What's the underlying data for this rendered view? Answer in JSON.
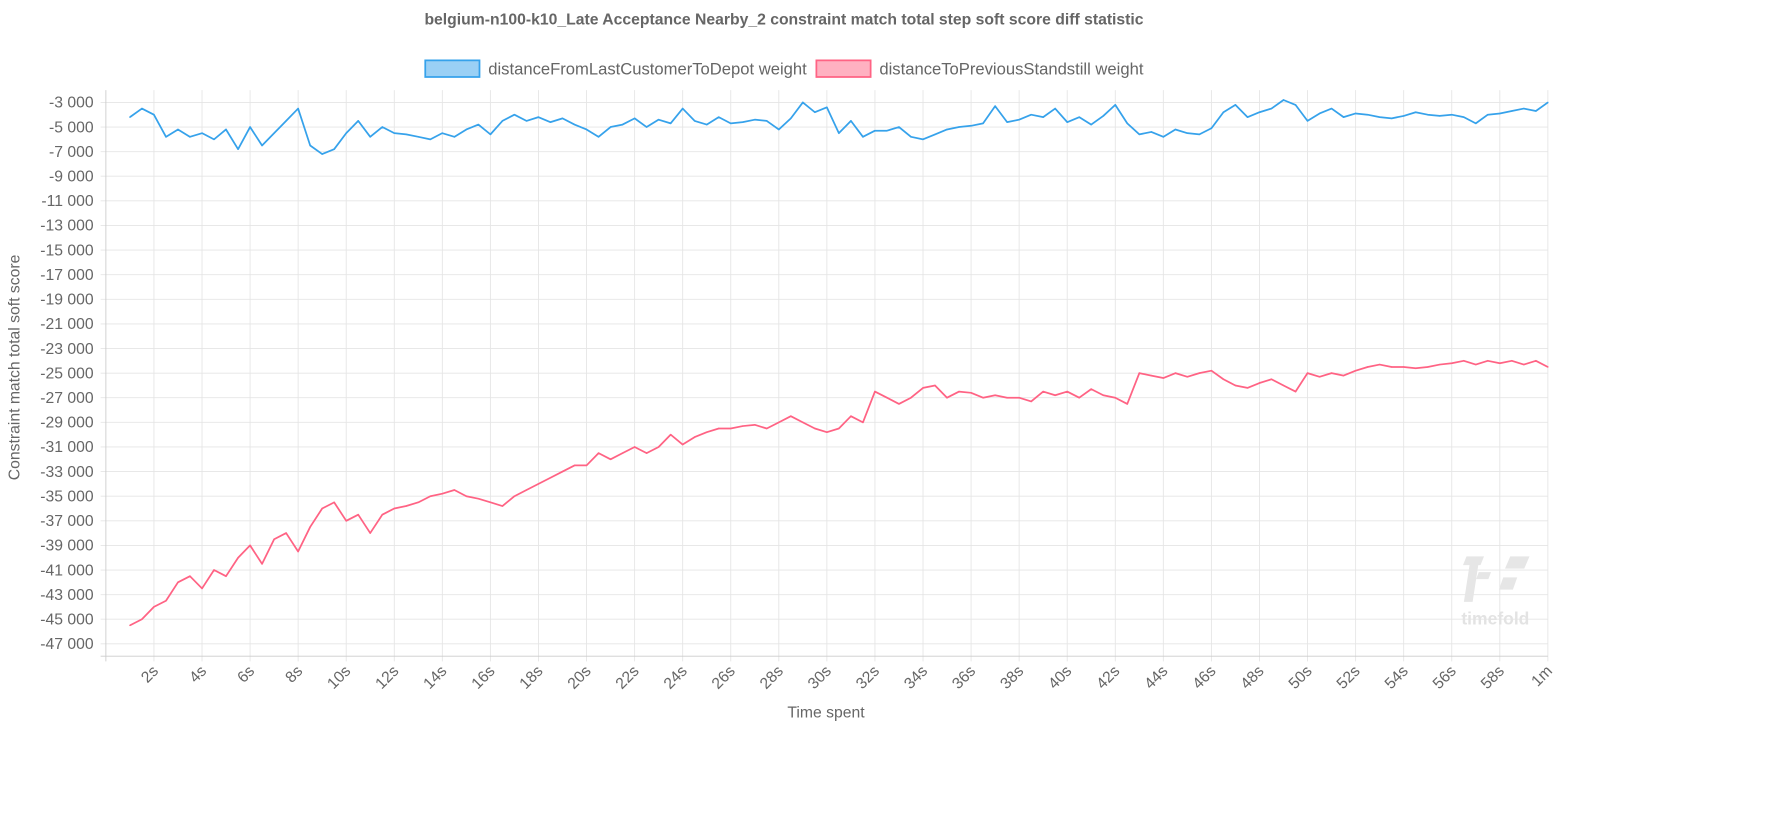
{
  "chart_data": {
    "type": "line",
    "title": "belgium-n100-k10_Late Acceptance Nearby_2 constraint match total step soft score diff statistic",
    "xlabel": "Time spent",
    "ylabel": "Constraint match total soft score",
    "xlim": [
      0,
      60
    ],
    "ylim": [
      -48000,
      -2000
    ],
    "grid": true,
    "legend_position": "top",
    "x_ticks": [
      {
        "value": 2,
        "label": "2s"
      },
      {
        "value": 4,
        "label": "4s"
      },
      {
        "value": 6,
        "label": "6s"
      },
      {
        "value": 8,
        "label": "8s"
      },
      {
        "value": 10,
        "label": "10s"
      },
      {
        "value": 12,
        "label": "12s"
      },
      {
        "value": 14,
        "label": "14s"
      },
      {
        "value": 16,
        "label": "16s"
      },
      {
        "value": 18,
        "label": "18s"
      },
      {
        "value": 20,
        "label": "20s"
      },
      {
        "value": 22,
        "label": "22s"
      },
      {
        "value": 24,
        "label": "24s"
      },
      {
        "value": 26,
        "label": "26s"
      },
      {
        "value": 28,
        "label": "28s"
      },
      {
        "value": 30,
        "label": "30s"
      },
      {
        "value": 32,
        "label": "32s"
      },
      {
        "value": 34,
        "label": "34s"
      },
      {
        "value": 36,
        "label": "36s"
      },
      {
        "value": 38,
        "label": "38s"
      },
      {
        "value": 40,
        "label": "40s"
      },
      {
        "value": 42,
        "label": "42s"
      },
      {
        "value": 44,
        "label": "44s"
      },
      {
        "value": 46,
        "label": "46s"
      },
      {
        "value": 48,
        "label": "48s"
      },
      {
        "value": 50,
        "label": "50s"
      },
      {
        "value": 52,
        "label": "52s"
      },
      {
        "value": 54,
        "label": "54s"
      },
      {
        "value": 56,
        "label": "56s"
      },
      {
        "value": 58,
        "label": "58s"
      },
      {
        "value": 60,
        "label": "1m"
      }
    ],
    "y_ticks": [
      {
        "value": -3000,
        "label": "-3 000"
      },
      {
        "value": -5000,
        "label": "-5 000"
      },
      {
        "value": -7000,
        "label": "-7 000"
      },
      {
        "value": -9000,
        "label": "-9 000"
      },
      {
        "value": -11000,
        "label": "-11 000"
      },
      {
        "value": -13000,
        "label": "-13 000"
      },
      {
        "value": -15000,
        "label": "-15 000"
      },
      {
        "value": -17000,
        "label": "-17 000"
      },
      {
        "value": -19000,
        "label": "-19 000"
      },
      {
        "value": -21000,
        "label": "-21 000"
      },
      {
        "value": -23000,
        "label": "-23 000"
      },
      {
        "value": -25000,
        "label": "-25 000"
      },
      {
        "value": -27000,
        "label": "-27 000"
      },
      {
        "value": -29000,
        "label": "-29 000"
      },
      {
        "value": -31000,
        "label": "-31 000"
      },
      {
        "value": -33000,
        "label": "-33 000"
      },
      {
        "value": -35000,
        "label": "-35 000"
      },
      {
        "value": -37000,
        "label": "-37 000"
      },
      {
        "value": -39000,
        "label": "-39 000"
      },
      {
        "value": -41000,
        "label": "-41 000"
      },
      {
        "value": -43000,
        "label": "-43 000"
      },
      {
        "value": -45000,
        "label": "-45 000"
      },
      {
        "value": -47000,
        "label": "-47 000"
      }
    ],
    "x": [
      1,
      1.5,
      2,
      2.5,
      3,
      3.5,
      4,
      4.5,
      5,
      5.5,
      6,
      6.5,
      7,
      7.5,
      8,
      8.5,
      9,
      9.5,
      10,
      10.5,
      11,
      11.5,
      12,
      12.5,
      13,
      13.5,
      14,
      14.5,
      15,
      15.5,
      16,
      16.5,
      17,
      17.5,
      18,
      18.5,
      19,
      19.5,
      20,
      20.5,
      21,
      21.5,
      22,
      22.5,
      23,
      23.5,
      24,
      24.5,
      25,
      25.5,
      26,
      26.5,
      27,
      27.5,
      28,
      28.5,
      29,
      29.5,
      30,
      30.5,
      31,
      31.5,
      32,
      32.5,
      33,
      33.5,
      34,
      34.5,
      35,
      35.5,
      36,
      36.5,
      37,
      37.5,
      38,
      38.5,
      39,
      39.5,
      40,
      40.5,
      41,
      41.5,
      42,
      42.5,
      43,
      43.5,
      44,
      44.5,
      45,
      45.5,
      46,
      46.5,
      47,
      47.5,
      48,
      48.5,
      49,
      49.5,
      50,
      50.5,
      51,
      51.5,
      52,
      52.5,
      53,
      53.5,
      54,
      54.5,
      55,
      55.5,
      56,
      56.5,
      57,
      57.5,
      58,
      58.5,
      59,
      59.5,
      60
    ],
    "series": [
      {
        "name": "distanceFromLastCustomerToDepot weight",
        "color": "#36a2eb",
        "fill": "#9ad0f5",
        "values": [
          -4200,
          -3500,
          -4000,
          -5800,
          -5200,
          -5800,
          -5500,
          -6000,
          -5200,
          -6800,
          -5000,
          -6500,
          -5500,
          -4500,
          -3500,
          -6500,
          -7200,
          -6800,
          -5500,
          -4500,
          -5800,
          -5000,
          -5500,
          -5600,
          -5800,
          -6000,
          -5500,
          -5800,
          -5200,
          -4800,
          -5600,
          -4500,
          -4000,
          -4500,
          -4200,
          -4600,
          -4300,
          -4800,
          -5200,
          -5800,
          -5000,
          -4800,
          -4300,
          -5000,
          -4400,
          -4700,
          -3500,
          -4500,
          -4800,
          -4200,
          -4700,
          -4600,
          -4400,
          -4500,
          -5200,
          -4300,
          -3000,
          -3800,
          -3400,
          -5500,
          -4500,
          -5800,
          -5300,
          -5300,
          -5000,
          -5800,
          -6000,
          -5600,
          -5200,
          -5000,
          -4900,
          -4700,
          -3300,
          -4600,
          -4400,
          -4000,
          -4200,
          -3500,
          -4600,
          -4200,
          -4800,
          -4100,
          -3200,
          -4700,
          -5600,
          -5400,
          -5800,
          -5200,
          -5500,
          -5600,
          -5100,
          -3800,
          -3200,
          -4200,
          -3800,
          -3500,
          -2800,
          -3200,
          -4500,
          -3900,
          -3500,
          -4200,
          -3900,
          -4000,
          -4200,
          -4300,
          -4100,
          -3800,
          -4000,
          -4100,
          -4000,
          -4200,
          -4700,
          -4000,
          -3900,
          -3700,
          -3500,
          -3700,
          -3000
        ]
      },
      {
        "name": "distanceToPreviousStandstill weight",
        "color": "#ff6384",
        "fill": "#ffb1c1",
        "values": [
          -45500,
          -45000,
          -44000,
          -43500,
          -42000,
          -41500,
          -42500,
          -41000,
          -41500,
          -40000,
          -39000,
          -40500,
          -38500,
          -38000,
          -39500,
          -37500,
          -36000,
          -35500,
          -37000,
          -36500,
          -38000,
          -36500,
          -36000,
          -35800,
          -35500,
          -35000,
          -34800,
          -34500,
          -35000,
          -35200,
          -35500,
          -35800,
          -35000,
          -34500,
          -34000,
          -33500,
          -33000,
          -32500,
          -32500,
          -31500,
          -32000,
          -31500,
          -31000,
          -31500,
          -31000,
          -30000,
          -30800,
          -30200,
          -29800,
          -29500,
          -29500,
          -29300,
          -29200,
          -29500,
          -29000,
          -28500,
          -29000,
          -29500,
          -29800,
          -29500,
          -28500,
          -29000,
          -26500,
          -27000,
          -27500,
          -27000,
          -26200,
          -26000,
          -27000,
          -26500,
          -26600,
          -27000,
          -26800,
          -27000,
          -27000,
          -27300,
          -26500,
          -26800,
          -26500,
          -27000,
          -26300,
          -26800,
          -27000,
          -27500,
          -25000,
          -25200,
          -25400,
          -25000,
          -25300,
          -25000,
          -24800,
          -25500,
          -26000,
          -26200,
          -25800,
          -25500,
          -26000,
          -26500,
          -25000,
          -25300,
          -25000,
          -25200,
          -24800,
          -24500,
          -24300,
          -24500,
          -24500,
          -24600,
          -24500,
          -24300,
          -24200,
          -24000,
          -24300,
          -24000,
          -24200,
          -24000,
          -24300,
          -24000,
          -24500
        ]
      }
    ]
  },
  "watermark": {
    "text": "timefold"
  }
}
